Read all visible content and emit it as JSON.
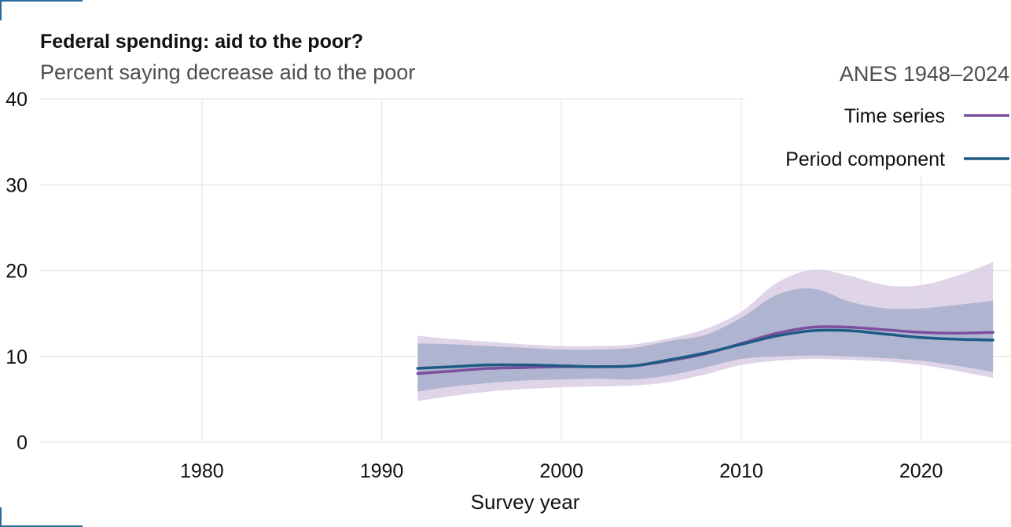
{
  "chart_data": {
    "type": "line",
    "title": "Federal spending: aid to the poor?",
    "subtitle": "Percent saying decrease aid to the poor",
    "source_label": "ANES 1948–2024",
    "xlabel": "Survey year",
    "ylabel": "",
    "xlim": [
      1971,
      2025
    ],
    "ylim": [
      0,
      40
    ],
    "x_ticks": [
      1980,
      1990,
      2000,
      2010,
      2020
    ],
    "y_ticks": [
      0,
      10,
      20,
      30,
      40
    ],
    "grid": true,
    "legend_position": "top-right",
    "x": [
      1992,
      1994,
      1996,
      1998,
      2000,
      2002,
      2004,
      2006,
      2008,
      2010,
      2012,
      2014,
      2016,
      2018,
      2020,
      2022,
      2024
    ],
    "series": [
      {
        "name": "Time series",
        "color": "#7b4f9d",
        "band_color": "#d9cce4",
        "values": [
          8.0,
          8.3,
          8.6,
          8.7,
          8.8,
          8.8,
          8.9,
          9.5,
          10.3,
          11.5,
          12.7,
          13.4,
          13.4,
          13.1,
          12.8,
          12.7,
          12.8
        ],
        "lower": [
          4.8,
          5.4,
          5.9,
          6.2,
          6.4,
          6.5,
          6.6,
          7.0,
          7.9,
          9.0,
          9.5,
          9.7,
          9.6,
          9.4,
          9.0,
          8.3,
          7.5
        ],
        "upper": [
          12.4,
          12.0,
          11.7,
          11.4,
          11.2,
          11.2,
          11.4,
          12.1,
          13.2,
          15.2,
          18.6,
          20.1,
          19.4,
          18.3,
          18.3,
          19.4,
          21.0
        ]
      },
      {
        "name": "Period component",
        "color": "#1d5b85",
        "band_color": "#a2adc9",
        "values": [
          8.6,
          8.8,
          9.0,
          9.0,
          8.9,
          8.8,
          8.9,
          9.6,
          10.4,
          11.4,
          12.4,
          13.0,
          13.0,
          12.6,
          12.2,
          12.0,
          11.9
        ],
        "lower": [
          5.9,
          6.5,
          6.9,
          7.2,
          7.3,
          7.4,
          7.3,
          7.8,
          8.7,
          9.7,
          10.0,
          10.1,
          10.0,
          9.8,
          9.5,
          8.9,
          8.2
        ],
        "upper": [
          11.5,
          11.4,
          11.2,
          11.0,
          10.8,
          10.8,
          11.0,
          11.8,
          12.5,
          14.5,
          17.2,
          17.9,
          16.4,
          15.6,
          15.6,
          16.0,
          16.5
        ]
      }
    ]
  }
}
